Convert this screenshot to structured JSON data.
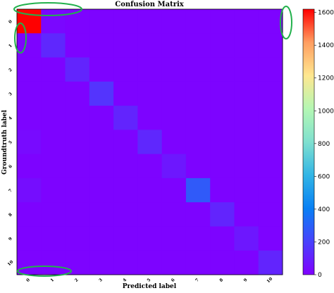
{
  "chart_data": {
    "type": "heatmap",
    "title": "Confusion Matrix",
    "xlabel": "Predicted label",
    "ylabel": "Groundtruth label",
    "x_tick_labels": [
      "0",
      "1",
      "2",
      "3",
      "4",
      "5",
      "6",
      "7",
      "8",
      "9",
      "10"
    ],
    "y_tick_labels": [
      "0",
      "1",
      "2",
      "3",
      "4",
      "5",
      "6",
      "7",
      "8",
      "9",
      "10"
    ],
    "matrix": [
      [
        1620,
        20,
        10,
        10,
        10,
        10,
        10,
        10,
        10,
        10,
        10
      ],
      [
        10,
        120,
        10,
        10,
        10,
        10,
        10,
        10,
        10,
        10,
        10
      ],
      [
        10,
        10,
        110,
        10,
        10,
        10,
        10,
        10,
        10,
        10,
        10
      ],
      [
        10,
        10,
        10,
        160,
        10,
        10,
        10,
        10,
        10,
        10,
        10
      ],
      [
        10,
        10,
        10,
        10,
        110,
        10,
        10,
        10,
        10,
        10,
        10
      ],
      [
        30,
        10,
        10,
        10,
        10,
        120,
        10,
        10,
        10,
        10,
        10
      ],
      [
        10,
        10,
        10,
        10,
        10,
        10,
        70,
        10,
        10,
        10,
        10
      ],
      [
        40,
        10,
        10,
        10,
        10,
        10,
        10,
        280,
        10,
        10,
        10
      ],
      [
        10,
        10,
        10,
        10,
        10,
        10,
        10,
        10,
        110,
        10,
        10
      ],
      [
        10,
        10,
        10,
        10,
        10,
        10,
        10,
        10,
        10,
        70,
        10
      ],
      [
        10,
        10,
        10,
        10,
        10,
        10,
        10,
        10,
        10,
        10,
        110
      ]
    ],
    "colormap": "rainbow",
    "vmin": 0,
    "vmax": 1620,
    "colorbar_ticks": [
      0,
      200,
      400,
      600,
      800,
      1000,
      1200,
      1400,
      1600
    ],
    "colorbar_tick_labels": [
      "0",
      "200",
      "400",
      "600",
      "800",
      "1000",
      "1200",
      "1400",
      "1600"
    ],
    "annotation_color": "#22b14c"
  }
}
